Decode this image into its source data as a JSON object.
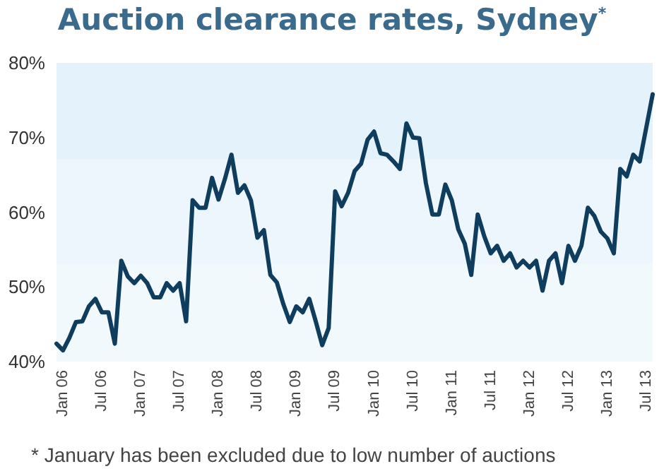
{
  "chart_data": {
    "type": "line",
    "title": "Auction clearance rates, Sydney$^{*}$",
    "annotations": [
      "* January has been excluded due to low number of auctions"
    ],
    "categories": [
      null,
      "Jan 06",
      null,
      null,
      null,
      null,
      null,
      "Jul 06",
      null,
      null,
      null,
      null,
      null,
      "Jan 07",
      null,
      null,
      null,
      null,
      null,
      "Jul 07",
      null,
      null,
      null,
      null,
      null,
      "Jan 08",
      null,
      null,
      null,
      null,
      null,
      "Jul 08",
      null,
      null,
      null,
      null,
      null,
      "Jan 09",
      null,
      null,
      null,
      null,
      null,
      "Jul 09",
      null,
      null,
      null,
      null,
      null,
      "Jan 10",
      null,
      null,
      null,
      null,
      null,
      "Jul 10",
      null,
      null,
      null,
      null,
      null,
      "Jan 11",
      null,
      null,
      null,
      null,
      null,
      "Jul 11",
      null,
      null,
      null,
      null,
      null,
      "Jan 12",
      null,
      null,
      null,
      null,
      null,
      "Jul 12",
      null,
      null,
      null,
      null,
      null,
      "Jan 13",
      null,
      null,
      null,
      null,
      null,
      "Jul 13",
      null
    ],
    "series": [
      {
        "color": "#0e3d5e",
        "values": [
          42.4,
          41.5,
          43.2,
          45.3,
          45.4,
          47.4,
          48.4,
          46.6,
          46.6,
          42.4,
          53.5,
          51.4,
          50.5,
          51.5,
          50.5,
          48.6,
          48.6,
          50.5,
          49.5,
          50.5,
          45.4,
          61.6,
          60.6,
          60.6,
          64.6,
          61.7,
          64.5,
          67.7,
          62.6,
          63.6,
          61.6,
          56.6,
          57.6,
          51.6,
          50.6,
          47.7,
          45.3,
          47.4,
          46.6,
          48.4,
          45.4,
          42.2,
          44.5,
          62.8,
          60.8,
          62.6,
          65.5,
          66.5,
          69.7,
          70.8,
          67.9,
          67.7,
          66.8,
          65.8,
          71.9,
          70,
          69.9,
          63.9,
          59.7,
          59.7,
          63.7,
          61.6,
          57.7,
          55.8,
          51.6,
          59.7,
          56.8,
          54.5,
          55.5,
          53.5,
          54.5,
          52.6,
          53.5,
          52.6,
          53.5,
          49.5,
          53.5,
          54.5,
          50.5,
          55.5,
          53.5,
          55.5,
          60.6,
          59.5,
          57.4,
          56.5,
          54.5,
          65.8,
          64.8,
          67.7,
          66.8,
          71.3,
          75.8
        ]
      }
    ],
    "ylim": [
      40,
      80
    ],
    "yticks": [
      {
        "value": 40,
        "label": "40%"
      },
      {
        "value": 50,
        "label": "50%"
      },
      {
        "value": 60,
        "label": "60%"
      },
      {
        "value": 70,
        "label": "70%"
      },
      {
        "value": 80,
        "label": "80%"
      }
    ],
    "bands": [
      {
        "axis": "y",
        "from": 67,
        "to": 80,
        "color": "#e4f2fb"
      },
      {
        "axis": "y",
        "from": 53,
        "to": 67,
        "color": "#ecf6fc"
      },
      {
        "axis": "y",
        "from": 40,
        "to": 53,
        "color": "#f2f9fd"
      }
    ],
    "grid": false,
    "marker": "none",
    "line_style": "solid"
  }
}
